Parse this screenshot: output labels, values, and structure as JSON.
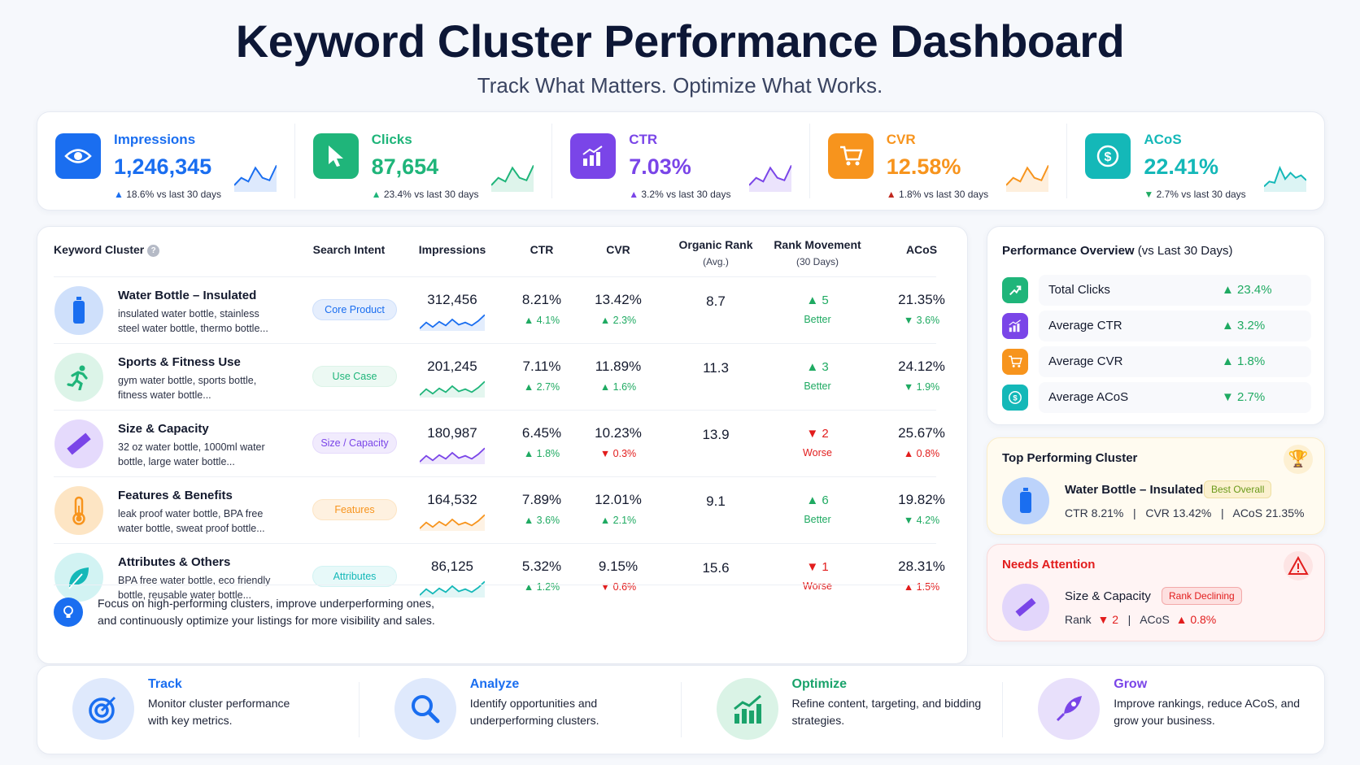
{
  "header": {
    "title": "Keyword Cluster Performance Dashboard",
    "subtitle": "Track What Matters. Optimize What Works."
  },
  "kpis": [
    {
      "label": "Impressions",
      "value": "1,246,345",
      "delta": "18.6% vs last 30 days",
      "direction": "up",
      "color": "#1a6ef0",
      "icon": "eye-icon"
    },
    {
      "label": "Clicks",
      "value": "87,654",
      "delta": "23.4% vs last 30 days",
      "direction": "up",
      "color": "#1fb57a",
      "icon": "cursor-icon"
    },
    {
      "label": "CTR",
      "value": "7.03%",
      "delta": "3.2% vs last 30 days",
      "direction": "up",
      "color": "#7a45e8",
      "icon": "bar-chart-icon"
    },
    {
      "label": "CVR",
      "value": "12.58%",
      "delta": "1.8% vs last 30 days",
      "direction": "up",
      "color": "#f7941d",
      "icon": "cart-icon"
    },
    {
      "label": "ACoS",
      "value": "22.41%",
      "delta": "2.7% vs last 30 days",
      "direction": "down",
      "color": "#14b8b8",
      "icon": "dollar-icon"
    }
  ],
  "table": {
    "headers": {
      "cluster": "Keyword Cluster",
      "intent": "Search Intent",
      "impressions": "Impressions",
      "ctr": "CTR",
      "cvr": "CVR",
      "rank": "Organic Rank",
      "rank_sub": "(Avg.)",
      "movement": "Rank Movement",
      "movement_sub": "(30 Days)",
      "acos": "ACoS"
    },
    "rows": [
      {
        "name": "Water Bottle – Insulated",
        "keywords": "insulated water bottle, stainless steel water bottle, thermo bottle...",
        "intent": "Core Product",
        "impressions": "312,456",
        "ctr": "8.21%",
        "ctr_delta": "4.1%",
        "ctr_dir": "up",
        "cvr": "13.42%",
        "cvr_delta": "2.3%",
        "cvr_dir": "up",
        "rank": "8.7",
        "move": "5",
        "move_dir": "up",
        "move_label": "Better",
        "acos": "21.35%",
        "acos_delta": "3.6%",
        "acos_dir": "down",
        "color": "#1a6ef0",
        "bg": "#cfe0fb",
        "icon": "bottle-icon"
      },
      {
        "name": "Sports & Fitness Use",
        "keywords": "gym water bottle, sports bottle, fitness water bottle...",
        "intent": "Use Case",
        "impressions": "201,245",
        "ctr": "7.11%",
        "ctr_delta": "2.7%",
        "ctr_dir": "up",
        "cvr": "11.89%",
        "cvr_delta": "1.6%",
        "cvr_dir": "up",
        "rank": "11.3",
        "move": "3",
        "move_dir": "up",
        "move_label": "Better",
        "acos": "24.12%",
        "acos_delta": "1.9%",
        "acos_dir": "down",
        "color": "#1fb57a",
        "bg": "#dcf4e8",
        "icon": "runner-icon"
      },
      {
        "name": "Size & Capacity",
        "keywords": "32 oz water bottle, 1000ml water bottle, large water bottle...",
        "intent": "Size / Capacity",
        "impressions": "180,987",
        "ctr": "6.45%",
        "ctr_delta": "1.8%",
        "ctr_dir": "up",
        "cvr": "10.23%",
        "cvr_delta": "0.3%",
        "cvr_dir": "down",
        "rank": "13.9",
        "move": "2",
        "move_dir": "down",
        "move_label": "Worse",
        "acos": "25.67%",
        "acos_delta": "0.8%",
        "acos_dir": "up",
        "color": "#7a45e8",
        "bg": "#e5dafc",
        "icon": "ruler-icon"
      },
      {
        "name": "Features & Benefits",
        "keywords": "leak proof water bottle, BPA free water bottle, sweat proof bottle...",
        "intent": "Features",
        "impressions": "164,532",
        "ctr": "7.89%",
        "ctr_delta": "3.6%",
        "ctr_dir": "up",
        "cvr": "12.01%",
        "cvr_delta": "2.1%",
        "cvr_dir": "up",
        "rank": "9.1",
        "move": "6",
        "move_dir": "up",
        "move_label": "Better",
        "acos": "19.82%",
        "acos_delta": "4.2%",
        "acos_dir": "down",
        "color": "#f7941d",
        "bg": "#fde5c4",
        "icon": "thermometer-icon"
      },
      {
        "name": "Attributes & Others",
        "keywords": "BPA free water bottle, eco friendly bottle, reusable water bottle...",
        "intent": "Attributes",
        "impressions": "86,125",
        "ctr": "5.32%",
        "ctr_delta": "1.2%",
        "ctr_dir": "up",
        "cvr": "9.15%",
        "cvr_delta": "0.6%",
        "cvr_dir": "down",
        "rank": "15.6",
        "move": "1",
        "move_dir": "down",
        "move_label": "Worse",
        "acos": "28.31%",
        "acos_delta": "1.5%",
        "acos_dir": "up",
        "color": "#14b8b8",
        "bg": "#d2f3f3",
        "icon": "leaf-icon"
      }
    ],
    "tip": "Focus on high-performing clusters, improve underperforming ones, and continuously optimize your listings for more visibility and sales."
  },
  "overview": {
    "title": "Performance Overview",
    "title_suffix": "(vs Last 30 Days)",
    "items": [
      {
        "label": "Total Clicks",
        "value": "23.4%",
        "direction": "up",
        "color": "#1fb57a",
        "icon": "trend-up-icon"
      },
      {
        "label": "Average CTR",
        "value": "3.2%",
        "direction": "up",
        "color": "#7a45e8",
        "icon": "bar-chart-icon"
      },
      {
        "label": "Average CVR",
        "value": "1.8%",
        "direction": "up",
        "color": "#f7941d",
        "icon": "cart-icon"
      },
      {
        "label": "Average ACoS",
        "value": "2.7%",
        "direction": "down",
        "color": "#14b8b8",
        "icon": "dollar-icon"
      }
    ]
  },
  "top": {
    "title": "Top Performing Cluster",
    "name": "Water Bottle – Insulated",
    "badge": "Best Overall",
    "ctr": "CTR 8.21%",
    "cvr": "CVR 13.42%",
    "acos": "ACoS 21.35%"
  },
  "attention": {
    "title": "Needs Attention",
    "name": "Size & Capacity",
    "badge": "Rank Declining",
    "rank_label": "Rank",
    "rank_value": "2",
    "acos_label": "ACoS",
    "acos_value": "0.8%"
  },
  "footer": [
    {
      "title": "Track",
      "desc": "Monitor cluster performance with key metrics.",
      "color": "#1a6ef0",
      "bg": "#dfe9fc",
      "icon": "target-icon"
    },
    {
      "title": "Analyze",
      "desc": "Identify opportunities and underperforming clusters.",
      "color": "#1a6ef0",
      "bg": "#dfe9fc",
      "icon": "magnifier-icon"
    },
    {
      "title": "Optimize",
      "desc": "Refine content, targeting, and bidding strategies.",
      "color": "#1aa36b",
      "bg": "#daf3e6",
      "icon": "growth-chart-icon"
    },
    {
      "title": "Grow",
      "desc": "Improve rankings, reduce ACoS, and grow your business.",
      "color": "#7a45e8",
      "bg": "#e8e0fb",
      "icon": "rocket-icon"
    }
  ]
}
